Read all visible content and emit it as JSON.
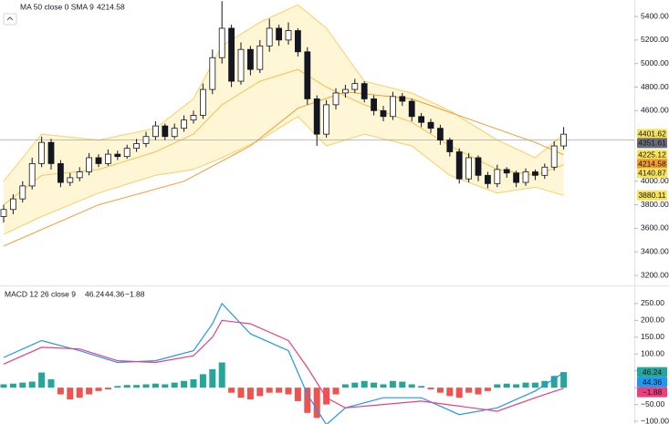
{
  "chart_data": [
    {
      "type": "candlestick",
      "title": "MA 50 close 0 SMA 9",
      "open": [
        3700,
        3760,
        3850,
        3960,
        4150,
        4330,
        4150,
        3990,
        4030,
        4080,
        4200,
        4150,
        4230,
        4210,
        4280,
        4320,
        4380,
        4470,
        4380,
        4450,
        4520,
        4560,
        4780,
        5050,
        5300,
        4850,
        5120,
        4950,
        5150,
        5300,
        5200,
        5280,
        5100,
        4700,
        4400,
        4650,
        4750,
        4780,
        4830,
        4700,
        4600,
        4550,
        4720,
        4680,
        4550,
        4500,
        4450,
        4350,
        4250,
        4020,
        4200,
        4050,
        3980,
        4100,
        4070,
        3990,
        4080,
        4050,
        4120,
        4300
      ],
      "high": [
        3800,
        3890,
        4000,
        4200,
        4380,
        4360,
        4180,
        4070,
        4120,
        4240,
        4230,
        4270,
        4260,
        4310,
        4360,
        4420,
        4510,
        4490,
        4490,
        4560,
        4600,
        4830,
        5120,
        5530,
        5330,
        5180,
        5150,
        5200,
        5380,
        5330,
        5350,
        5300,
        5140,
        4730,
        4690,
        4790,
        4820,
        4870,
        4850,
        4730,
        4640,
        4760,
        4750,
        4700,
        4580,
        4530,
        4480,
        4370,
        4280,
        4240,
        4220,
        4080,
        4140,
        4120,
        4090,
        4110,
        4100,
        4150,
        4340,
        4460
      ],
      "low": [
        3650,
        3720,
        3820,
        3930,
        4120,
        4100,
        3950,
        3960,
        4000,
        4050,
        4120,
        4130,
        4180,
        4190,
        4250,
        4290,
        4350,
        4350,
        4360,
        4420,
        4490,
        4530,
        4740,
        5000,
        4800,
        4820,
        4900,
        4920,
        5100,
        5150,
        5160,
        5060,
        4650,
        4300,
        4370,
        4610,
        4710,
        4750,
        4670,
        4560,
        4510,
        4520,
        4640,
        4510,
        4460,
        4410,
        4310,
        4210,
        3980,
        3990,
        4000,
        3940,
        3950,
        4030,
        3950,
        3960,
        4010,
        4020,
        4090,
        4270
      ],
      "close": [
        3760,
        3850,
        3960,
        4150,
        4330,
        4150,
        3990,
        4030,
        4080,
        4200,
        4150,
        4230,
        4210,
        4280,
        4320,
        4380,
        4470,
        4380,
        4450,
        4520,
        4560,
        4780,
        5050,
        5300,
        4850,
        5120,
        4950,
        5150,
        5300,
        5200,
        5280,
        5100,
        4700,
        4400,
        4650,
        4750,
        4780,
        4830,
        4700,
        4600,
        4550,
        4720,
        4680,
        4550,
        4500,
        4450,
        4350,
        4250,
        4020,
        4200,
        4050,
        3980,
        4100,
        4070,
        3990,
        4080,
        4050,
        4120,
        4300,
        4400
      ],
      "up_color": "#ffffff",
      "down_color": "#131722",
      "outline_color": "#131722",
      "band": {
        "x": [
          0,
          4,
          10,
          16,
          20,
          23,
          27,
          31,
          34,
          38,
          43,
          47,
          52,
          56,
          59
        ],
        "upper": [
          4000,
          4400,
          4350,
          4450,
          4700,
          5150,
          5350,
          5500,
          5300,
          4850,
          4750,
          4600,
          4350,
          4200,
          4400
        ],
        "middle": [
          3800,
          4050,
          4100,
          4250,
          4400,
          4650,
          4850,
          4950,
          4800,
          4650,
          4500,
          4300,
          4100,
          4050,
          4140
        ],
        "lower": [
          3550,
          3700,
          3900,
          4050,
          4100,
          4200,
          4350,
          4550,
          4300,
          4400,
          4300,
          4050,
          3900,
          3950,
          3880
        ],
        "fill": "#fff4cc",
        "line_color": "#f7cf6b",
        "mid_color": "#f2c14e"
      },
      "lines": [
        {
          "x": [
            0,
            10,
            19,
            26,
            31,
            36,
            43,
            50,
            56,
            59
          ],
          "values": [
            3450,
            3800,
            4000,
            4300,
            4620,
            4760,
            4700,
            4500,
            4330,
            4225
          ],
          "color": "#f29b30"
        }
      ],
      "price_labels": [
        {
          "value": 4401.62,
          "bg": "#f7e35a",
          "fg": "#131722"
        },
        {
          "value": 4351.61,
          "bg": "#6a6d78",
          "fg": "#ffffff"
        },
        {
          "value": 4225.12,
          "bg": "#f7e35a",
          "fg": "#131722"
        },
        {
          "value": 4214.58,
          "bg": "#f29b30",
          "fg": "#ffffff"
        },
        {
          "value": 4140.87,
          "bg": "#f7e35a",
          "fg": "#131722"
        },
        {
          "value": 3880.11,
          "bg": "#f7e35a",
          "fg": "#131722"
        }
      ],
      "ylim": [
        3115,
        5540
      ],
      "yticks": [
        {
          "value": 5400,
          "label": "5400.00"
        },
        {
          "value": 5200,
          "label": "5200.00"
        },
        {
          "value": 5000,
          "label": "5000.00"
        },
        {
          "value": 4800,
          "label": "4800.00"
        },
        {
          "value": 4600,
          "label": "4600.00"
        },
        {
          "value": 4000,
          "label": "4000.00"
        },
        {
          "value": 3800,
          "label": "3800.00"
        },
        {
          "value": 3600,
          "label": "3600.00"
        },
        {
          "value": 3400,
          "label": "3400.00"
        },
        {
          "value": 3200,
          "label": "3200.00"
        }
      ]
    },
    {
      "type": "macd",
      "title": "MACD 12 26 close 9",
      "histogram": {
        "values": [
          10,
          12,
          15,
          18,
          45,
          25,
          -20,
          -35,
          -30,
          -20,
          -10,
          -5,
          5,
          8,
          8,
          10,
          12,
          10,
          15,
          20,
          25,
          40,
          55,
          75,
          -15,
          -30,
          -35,
          -25,
          -15,
          -15,
          -20,
          -40,
          -75,
          -90,
          -50,
          -20,
          10,
          15,
          20,
          15,
          10,
          20,
          18,
          10,
          5,
          -5,
          -15,
          -25,
          -30,
          -15,
          -20,
          -10,
          10,
          12,
          10,
          15,
          15,
          20,
          35,
          46.24
        ],
        "up_color": "#26a69a",
        "down_color": "#ef5350"
      },
      "series": [
        {
          "color": "#2196f3",
          "x": [
            0,
            4,
            8,
            12,
            16,
            20,
            22,
            23,
            26,
            30,
            32,
            34,
            36,
            40,
            44,
            48,
            52,
            56,
            59
          ],
          "values": [
            90,
            140,
            110,
            75,
            80,
            110,
            190,
            250,
            160,
            110,
            -20,
            -110,
            -60,
            -30,
            -30,
            -80,
            -60,
            -10,
            44.36
          ]
        },
        {
          "color": "#ec407a",
          "x": [
            0,
            4,
            8,
            12,
            16,
            20,
            22,
            23,
            26,
            30,
            32,
            34,
            36,
            40,
            44,
            48,
            52,
            56,
            59
          ],
          "values": [
            70,
            120,
            115,
            80,
            75,
            95,
            150,
            200,
            190,
            140,
            60,
            -30,
            -60,
            -50,
            -40,
            -55,
            -70,
            -30,
            -1.88
          ]
        }
      ],
      "value_labels": [
        {
          "value": 46.24,
          "label": "46.24",
          "color": "#26a69a"
        },
        {
          "value": 44.36,
          "label": "44.36",
          "color": "#2196f3"
        },
        {
          "value": -1.88,
          "label": "−1.88",
          "color": "#ec407a"
        }
      ],
      "ylim": [
        -108,
        304
      ],
      "yticks": [
        {
          "value": 250,
          "label": "250.00"
        },
        {
          "value": 200,
          "label": "200.00"
        },
        {
          "value": 150,
          "label": "150.00"
        },
        {
          "value": 100,
          "label": "100.00"
        },
        {
          "value": 50,
          "label": "50.00"
        },
        {
          "value": 0,
          "label": "0.00"
        },
        {
          "value": -50,
          "label": "−50.00"
        },
        {
          "value": -100,
          "label": "−100.00"
        }
      ]
    }
  ]
}
